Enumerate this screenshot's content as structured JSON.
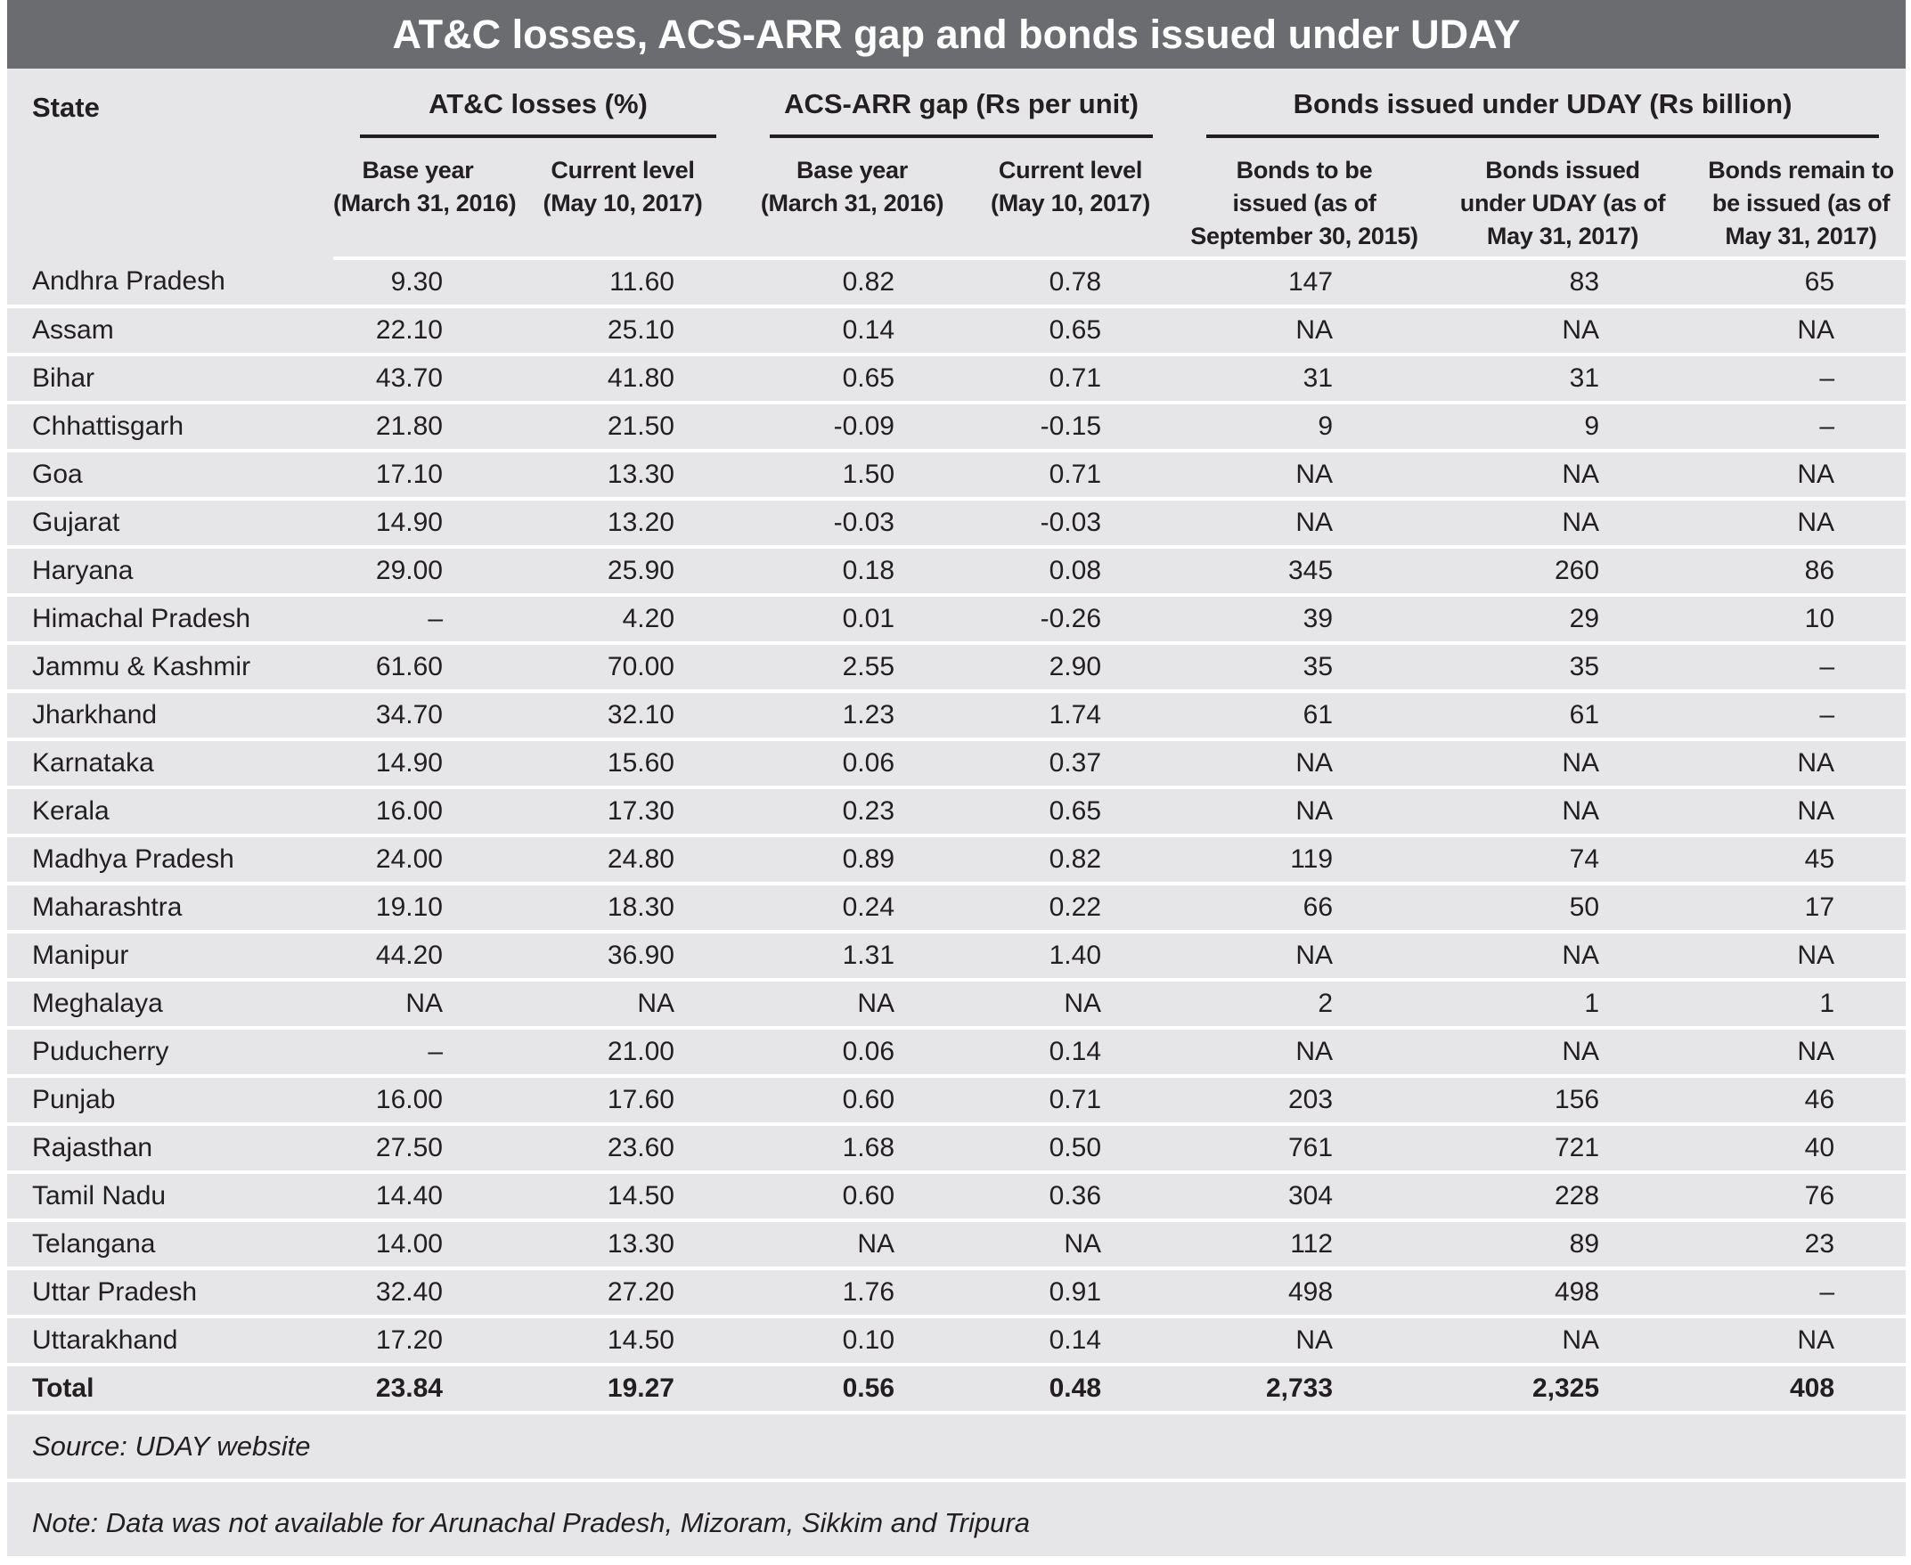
{
  "title": "AT&C losses, ACS-ARR gap and bonds issued under UDAY",
  "colors": {
    "title_bar": "#6b6c70",
    "content_bg": "#e6e6e8",
    "text": "#231f20",
    "divider": "#ffffff"
  },
  "chart_data": {
    "type": "table",
    "title": "AT&C losses, ACS-ARR gap and bonds issued under UDAY",
    "state_header": "State",
    "groups": [
      {
        "label": "AT&C losses (%)"
      },
      {
        "label": "ACS-ARR gap (Rs per unit)"
      },
      {
        "label": "Bonds issued under UDAY (Rs billion)"
      }
    ],
    "subheaders": [
      "Base year\n(March 31, 2016)",
      "Current level\n(May 10, 2017)",
      "Base year\n(March 31, 2016)",
      "Current level\n(May 10, 2017)",
      "Bonds to be\nissued (as of\nSeptember 30, 2015)",
      "Bonds issued\nunder UDAY (as of\nMay 31, 2017)",
      "Bonds remain to\nbe issued (as of\nMay 31, 2017)"
    ],
    "rows": [
      [
        "Andhra Pradesh",
        "9.30",
        "11.60",
        "0.82",
        "0.78",
        "147",
        "83",
        "65"
      ],
      [
        "Assam",
        "22.10",
        "25.10",
        "0.14",
        "0.65",
        "NA",
        "NA",
        "NA"
      ],
      [
        "Bihar",
        "43.70",
        "41.80",
        "0.65",
        "0.71",
        "31",
        "31",
        "–"
      ],
      [
        "Chhattisgarh",
        "21.80",
        "21.50",
        "-0.09",
        "-0.15",
        "9",
        "9",
        "–"
      ],
      [
        "Goa",
        "17.10",
        "13.30",
        "1.50",
        "0.71",
        "NA",
        "NA",
        "NA"
      ],
      [
        "Gujarat",
        "14.90",
        "13.20",
        "-0.03",
        "-0.03",
        "NA",
        "NA",
        "NA"
      ],
      [
        "Haryana",
        "29.00",
        "25.90",
        "0.18",
        "0.08",
        "345",
        "260",
        "86"
      ],
      [
        "Himachal Pradesh",
        "–",
        "4.20",
        "0.01",
        "-0.26",
        "39",
        "29",
        "10"
      ],
      [
        "Jammu & Kashmir",
        "61.60",
        "70.00",
        "2.55",
        "2.90",
        "35",
        "35",
        "–"
      ],
      [
        "Jharkhand",
        "34.70",
        "32.10",
        "1.23",
        "1.74",
        "61",
        "61",
        "–"
      ],
      [
        "Karnataka",
        "14.90",
        "15.60",
        "0.06",
        "0.37",
        "NA",
        "NA",
        "NA"
      ],
      [
        "Kerala",
        "16.00",
        "17.30",
        "0.23",
        "0.65",
        "NA",
        "NA",
        "NA"
      ],
      [
        "Madhya Pradesh",
        "24.00",
        "24.80",
        "0.89",
        "0.82",
        "119",
        "74",
        "45"
      ],
      [
        "Maharashtra",
        "19.10",
        "18.30",
        "0.24",
        "0.22",
        "66",
        "50",
        "17"
      ],
      [
        "Manipur",
        "44.20",
        "36.90",
        "1.31",
        "1.40",
        "NA",
        "NA",
        "NA"
      ],
      [
        "Meghalaya",
        "NA",
        "NA",
        "NA",
        "NA",
        "2",
        "1",
        "1"
      ],
      [
        "Puducherry",
        "–",
        "21.00",
        "0.06",
        "0.14",
        "NA",
        "NA",
        "NA"
      ],
      [
        "Punjab",
        "16.00",
        "17.60",
        "0.60",
        "0.71",
        "203",
        "156",
        "46"
      ],
      [
        "Rajasthan",
        "27.50",
        "23.60",
        "1.68",
        "0.50",
        "761",
        "721",
        "40"
      ],
      [
        "Tamil Nadu",
        "14.40",
        "14.50",
        "0.60",
        "0.36",
        "304",
        "228",
        "76"
      ],
      [
        "Telangana",
        "14.00",
        "13.30",
        "NA",
        "NA",
        "112",
        "89",
        "23"
      ],
      [
        "Uttar Pradesh",
        "32.40",
        "27.20",
        "1.76",
        "0.91",
        "498",
        "498",
        "–"
      ],
      [
        "Uttarakhand",
        "17.20",
        "14.50",
        "0.10",
        "0.14",
        "NA",
        "NA",
        "NA"
      ]
    ],
    "total": [
      "Total",
      "23.84",
      "19.27",
      "0.56",
      "0.48",
      "2,733",
      "2,325",
      "408"
    ]
  },
  "source": "Source: UDAY website",
  "note": "Note: Data was not available for Arunachal Pradesh, Mizoram, Sikkim and Tripura"
}
